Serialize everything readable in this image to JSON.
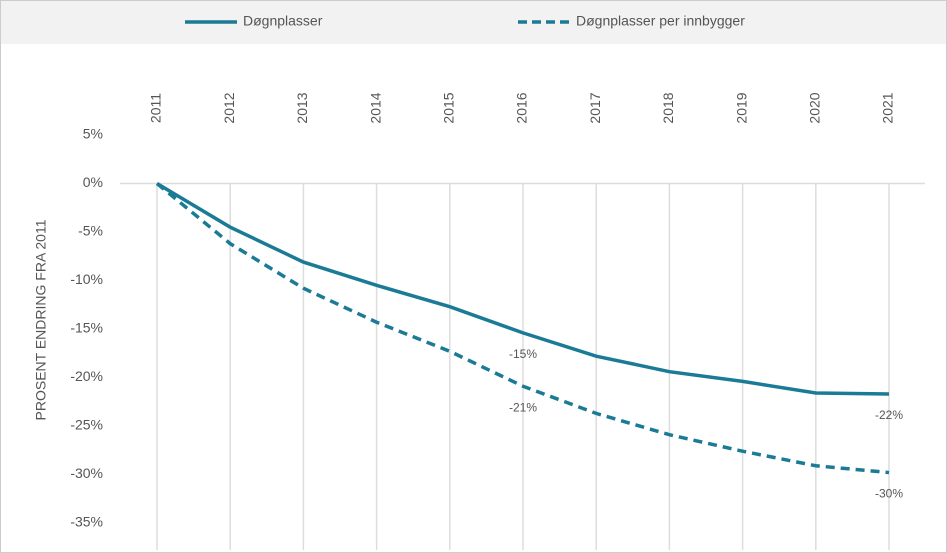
{
  "chart_data": {
    "type": "line",
    "y_axis_title": "PROSENT ENDRING FRA 2011",
    "categories": [
      "2011",
      "2012",
      "2013",
      "2014",
      "2015",
      "2016",
      "2017",
      "2018",
      "2019",
      "2020",
      "2021"
    ],
    "series": [
      {
        "name": "Døgnplasser",
        "color": "#1b7b96",
        "dash": false,
        "values": [
          0,
          -4.5,
          -8.1,
          -10.5,
          -12.7,
          -15.4,
          -17.8,
          -19.4,
          -20.4,
          -21.6,
          -21.7
        ],
        "value_labels": [
          null,
          null,
          null,
          null,
          null,
          "-15%",
          null,
          null,
          null,
          null,
          "-22%"
        ]
      },
      {
        "name": "Døgnplasser per innbygger",
        "color": "#1b7b96",
        "dash": true,
        "values": [
          0,
          -6.2,
          -10.8,
          -14.3,
          -17.3,
          -20.9,
          -23.7,
          -25.9,
          -27.6,
          -29.1,
          -29.8
        ],
        "value_labels": [
          null,
          null,
          null,
          null,
          null,
          "-21%",
          null,
          null,
          null,
          null,
          "-30%"
        ]
      }
    ],
    "ylim": [
      -35,
      5
    ],
    "yticks": [
      {
        "value": 5,
        "label": "5%"
      },
      {
        "value": 0,
        "label": "0%"
      },
      {
        "value": -5,
        "label": "-5%"
      },
      {
        "value": -10,
        "label": "-10%"
      },
      {
        "value": -15,
        "label": "-15%"
      },
      {
        "value": -20,
        "label": "-20%"
      },
      {
        "value": -25,
        "label": "-25%"
      },
      {
        "value": -30,
        "label": "-30%"
      },
      {
        "value": -35,
        "label": "-35%"
      }
    ],
    "grid": true
  }
}
